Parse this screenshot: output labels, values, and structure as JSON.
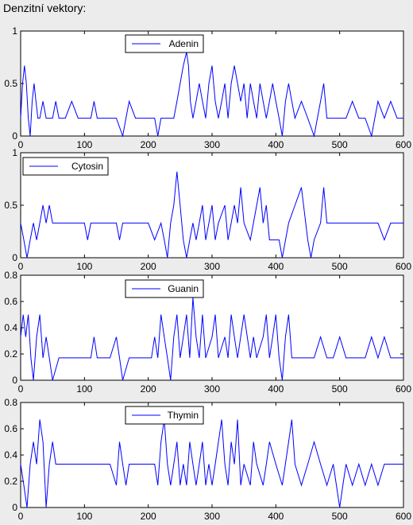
{
  "window": {
    "title": "Denzitní vektory:"
  },
  "chart_data": [
    {
      "type": "line",
      "legend": [
        "Adenin"
      ],
      "legend_position": "top-left",
      "color": "#0000ff",
      "xlim": [
        0,
        600
      ],
      "ylim": [
        0,
        1
      ],
      "xticks": [
        0,
        100,
        200,
        300,
        400,
        500,
        600
      ],
      "yticks": [
        0,
        0.5,
        1
      ],
      "ytick_labels": [
        "0",
        "0.5",
        "1"
      ],
      "series": [
        {
          "x": [
            0,
            3,
            6,
            9,
            12,
            15,
            18,
            21,
            24,
            27,
            30,
            35,
            40,
            45,
            50,
            55,
            60,
            70,
            80,
            90,
            100,
            110,
            115,
            120,
            140,
            150,
            160,
            165,
            170,
            180,
            190,
            200,
            210,
            215,
            220,
            230,
            240,
            245,
            250,
            255,
            260,
            263,
            266,
            270,
            275,
            280,
            285,
            290,
            295,
            300,
            305,
            310,
            315,
            320,
            325,
            330,
            335,
            340,
            345,
            350,
            355,
            360,
            365,
            370,
            375,
            380,
            385,
            390,
            395,
            400,
            405,
            410,
            415,
            420,
            425,
            430,
            440,
            450,
            460,
            465,
            470,
            475,
            480,
            490,
            500,
            510,
            520,
            530,
            540,
            550,
            555,
            560,
            570,
            580,
            590,
            600
          ],
          "y": [
            0.17,
            0.5,
            0.67,
            0.5,
            0.17,
            0,
            0.33,
            0.5,
            0.33,
            0.17,
            0.17,
            0.33,
            0.17,
            0.17,
            0.17,
            0.33,
            0.17,
            0.17,
            0.33,
            0.17,
            0.17,
            0.17,
            0.33,
            0.17,
            0.17,
            0.17,
            0,
            0.17,
            0.33,
            0.17,
            0.17,
            0.17,
            0.17,
            0,
            0.17,
            0.17,
            0.17,
            0.33,
            0.5,
            0.67,
            0.8,
            0.67,
            0.33,
            0.17,
            0.33,
            0.5,
            0.33,
            0.17,
            0.5,
            0.67,
            0.33,
            0.17,
            0.33,
            0.5,
            0.17,
            0.5,
            0.67,
            0.5,
            0.33,
            0.5,
            0.17,
            0.5,
            0.33,
            0.17,
            0.5,
            0.33,
            0.17,
            0.33,
            0.5,
            0.33,
            0.17,
            0,
            0.33,
            0.5,
            0.33,
            0.17,
            0.33,
            0.17,
            0,
            0.17,
            0.33,
            0.5,
            0.17,
            0.17,
            0.17,
            0.17,
            0.33,
            0.17,
            0.17,
            0,
            0.17,
            0.33,
            0.17,
            0.33,
            0.17,
            0.17
          ]
        }
      ]
    },
    {
      "type": "line",
      "legend": [
        "Cytosin"
      ],
      "legend_position": "top-left",
      "color": "#0000ff",
      "xlim": [
        0,
        600
      ],
      "ylim": [
        0,
        1
      ],
      "xticks": [
        0,
        100,
        200,
        300,
        400,
        500,
        600
      ],
      "yticks": [
        0,
        0.5,
        1
      ],
      "ytick_labels": [
        "0",
        "0.5",
        "1"
      ],
      "series": [
        {
          "x": [
            0,
            5,
            10,
            15,
            20,
            25,
            30,
            35,
            40,
            45,
            50,
            55,
            60,
            70,
            80,
            90,
            100,
            105,
            110,
            120,
            130,
            140,
            150,
            155,
            160,
            170,
            180,
            190,
            200,
            210,
            220,
            225,
            230,
            235,
            240,
            245,
            250,
            255,
            260,
            265,
            270,
            275,
            280,
            285,
            290,
            295,
            300,
            305,
            310,
            320,
            325,
            330,
            335,
            340,
            345,
            350,
            360,
            370,
            375,
            380,
            385,
            390,
            400,
            405,
            410,
            420,
            430,
            440,
            450,
            455,
            460,
            470,
            475,
            480,
            490,
            500,
            510,
            520,
            530,
            540,
            550,
            560,
            570,
            580,
            590,
            600
          ],
          "y": [
            0.33,
            0.17,
            0,
            0.17,
            0.33,
            0.17,
            0.33,
            0.5,
            0.33,
            0.5,
            0.33,
            0.33,
            0.33,
            0.33,
            0.33,
            0.33,
            0.33,
            0.17,
            0.33,
            0.33,
            0.33,
            0.33,
            0.33,
            0.17,
            0.33,
            0.33,
            0.33,
            0.33,
            0.33,
            0.17,
            0.33,
            0.17,
            0,
            0.33,
            0.5,
            0.82,
            0.5,
            0.17,
            0,
            0.17,
            0.33,
            0.17,
            0.33,
            0.5,
            0.17,
            0.33,
            0.5,
            0.17,
            0.33,
            0.5,
            0.17,
            0.33,
            0.5,
            0.33,
            0.67,
            0.33,
            0.17,
            0.5,
            0.67,
            0.33,
            0.5,
            0.17,
            0.17,
            0.17,
            0,
            0.33,
            0.5,
            0.67,
            0.17,
            0,
            0.17,
            0.33,
            0.67,
            0.33,
            0.33,
            0.33,
            0.33,
            0.33,
            0.33,
            0.33,
            0.33,
            0.33,
            0.17,
            0.33,
            0.33,
            0.33
          ]
        }
      ]
    },
    {
      "type": "line",
      "legend": [
        "Guanin"
      ],
      "legend_position": "top-left",
      "color": "#0000ff",
      "xlim": [
        0,
        600
      ],
      "ylim": [
        0,
        0.8
      ],
      "xticks": [
        0,
        100,
        200,
        300,
        400,
        500,
        600
      ],
      "yticks": [
        0,
        0.2,
        0.4,
        0.6,
        0.8
      ],
      "ytick_labels": [
        "0",
        "0.2",
        "0.4",
        "0.6",
        "0.8"
      ],
      "series": [
        {
          "x": [
            0,
            4,
            8,
            12,
            16,
            20,
            25,
            30,
            35,
            40,
            45,
            50,
            60,
            70,
            80,
            90,
            100,
            110,
            115,
            120,
            130,
            140,
            150,
            155,
            160,
            170,
            180,
            190,
            200,
            205,
            210,
            215,
            220,
            225,
            230,
            235,
            240,
            245,
            250,
            255,
            260,
            265,
            270,
            275,
            280,
            285,
            290,
            300,
            305,
            310,
            320,
            325,
            330,
            335,
            340,
            350,
            360,
            365,
            370,
            380,
            385,
            390,
            395,
            400,
            405,
            410,
            415,
            420,
            425,
            430,
            440,
            450,
            460,
            470,
            480,
            490,
            500,
            510,
            520,
            530,
            540,
            550,
            560,
            570,
            580,
            590,
            600
          ],
          "y": [
            0.33,
            0.5,
            0.33,
            0.5,
            0.17,
            0,
            0.33,
            0.5,
            0.17,
            0.33,
            0.17,
            0,
            0.17,
            0.17,
            0.17,
            0.17,
            0.17,
            0.17,
            0.33,
            0.17,
            0.17,
            0.17,
            0.33,
            0.17,
            0,
            0.17,
            0.17,
            0.17,
            0.17,
            0.17,
            0.33,
            0.17,
            0.5,
            0.33,
            0.17,
            0,
            0.33,
            0.5,
            0.17,
            0.33,
            0.5,
            0.17,
            0.63,
            0.33,
            0.17,
            0.5,
            0.17,
            0.33,
            0.5,
            0.17,
            0.33,
            0.17,
            0.5,
            0.33,
            0.17,
            0.5,
            0.17,
            0.33,
            0.17,
            0.33,
            0.5,
            0.17,
            0.33,
            0.5,
            0.17,
            0,
            0.33,
            0.5,
            0.17,
            0.17,
            0.17,
            0.17,
            0.17,
            0.33,
            0.17,
            0.17,
            0.33,
            0.17,
            0.17,
            0.17,
            0.17,
            0.33,
            0.17,
            0.33,
            0.17,
            0.17,
            0.17
          ]
        }
      ]
    },
    {
      "type": "line",
      "legend": [
        "Thymin"
      ],
      "legend_position": "top-left",
      "color": "#0000ff",
      "xlim": [
        0,
        600
      ],
      "ylim": [
        0,
        0.8
      ],
      "xticks": [
        0,
        100,
        200,
        300,
        400,
        500,
        600
      ],
      "yticks": [
        0,
        0.2,
        0.4,
        0.6,
        0.8
      ],
      "ytick_labels": [
        "0",
        "0.2",
        "0.4",
        "0.6",
        "0.8"
      ],
      "series": [
        {
          "x": [
            0,
            5,
            10,
            15,
            20,
            25,
            30,
            35,
            40,
            45,
            50,
            55,
            60,
            70,
            80,
            90,
            100,
            110,
            120,
            130,
            140,
            150,
            155,
            160,
            165,
            170,
            180,
            190,
            200,
            210,
            215,
            220,
            225,
            230,
            235,
            240,
            245,
            250,
            255,
            260,
            265,
            270,
            275,
            280,
            285,
            290,
            295,
            300,
            305,
            310,
            315,
            320,
            325,
            330,
            335,
            340,
            345,
            350,
            360,
            365,
            370,
            380,
            385,
            390,
            400,
            410,
            420,
            425,
            430,
            440,
            450,
            460,
            470,
            480,
            490,
            500,
            505,
            510,
            520,
            530,
            540,
            550,
            560,
            570,
            580,
            590,
            600
          ],
          "y": [
            0.33,
            0.17,
            0,
            0.33,
            0.5,
            0.33,
            0.67,
            0.5,
            0,
            0.33,
            0.5,
            0.33,
            0.33,
            0.33,
            0.33,
            0.33,
            0.33,
            0.33,
            0.33,
            0.33,
            0.33,
            0.17,
            0.5,
            0.33,
            0.17,
            0.33,
            0.33,
            0.33,
            0.33,
            0.33,
            0.17,
            0.5,
            0.67,
            0.33,
            0.17,
            0.33,
            0.5,
            0.17,
            0.33,
            0.17,
            0.5,
            0.33,
            0.17,
            0.33,
            0.5,
            0.17,
            0.33,
            0.17,
            0.33,
            0.5,
            0.67,
            0.33,
            0.17,
            0.5,
            0.33,
            0.67,
            0.17,
            0.33,
            0.17,
            0.5,
            0.33,
            0.17,
            0.33,
            0.5,
            0.33,
            0.17,
            0.5,
            0.67,
            0.33,
            0.17,
            0.33,
            0.5,
            0.33,
            0.17,
            0.33,
            0,
            0.17,
            0.33,
            0.17,
            0.33,
            0.17,
            0.33,
            0.17,
            0.33,
            0.33,
            0.33,
            0.33
          ]
        }
      ]
    }
  ]
}
